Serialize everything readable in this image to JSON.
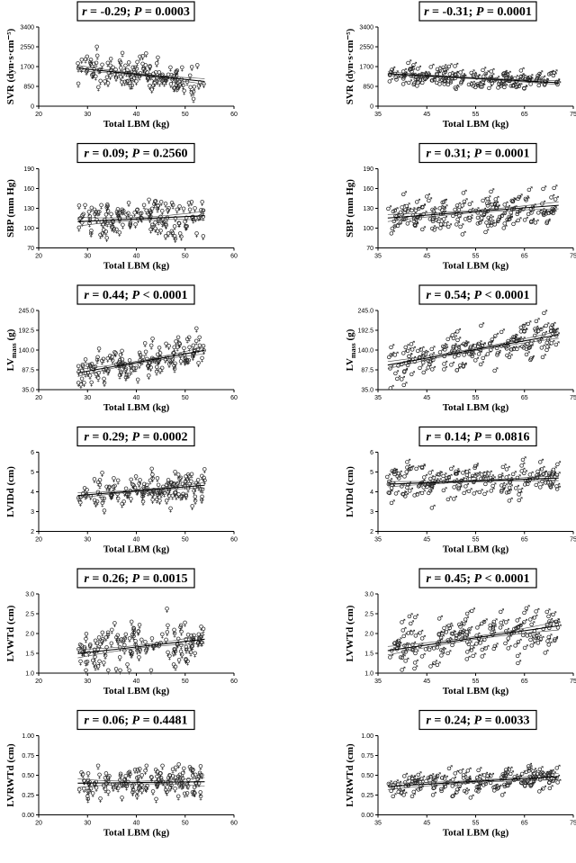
{
  "symbols": {
    "female": "♀",
    "male": "♂"
  },
  "chart_data": [
    {
      "id": "svr-f",
      "type": "scatter",
      "stat_r": "-0.29",
      "stat_p": "P = 0.0003",
      "ylabel": "SVR (dyn·s·cm⁻⁵)",
      "xlabel": "Total LBM (kg)",
      "xlim": [
        20,
        60
      ],
      "xticks": [
        20,
        30,
        40,
        50,
        60
      ],
      "ylim": [
        0,
        3400
      ],
      "yticks": [
        "0",
        "850",
        "1700",
        "2550",
        "3400"
      ],
      "sex": "female",
      "n": 150,
      "xrange": [
        28,
        54
      ],
      "fit": {
        "slope": -22,
        "intercept": 2250,
        "sd": 330
      },
      "ci_width": 90
    },
    {
      "id": "svr-m",
      "type": "scatter",
      "stat_r": "-0.31",
      "stat_p": "P = 0.0001",
      "ylabel": "SVR (dyn·s·cm⁻⁵)",
      "xlabel": "Total LBM (kg)",
      "xlim": [
        35,
        75
      ],
      "xticks": [
        35,
        45,
        55,
        65,
        75
      ],
      "ylim": [
        0,
        3400
      ],
      "yticks": [
        "0",
        "850",
        "1700",
        "2550",
        "3400"
      ],
      "sex": "male",
      "n": 170,
      "xrange": [
        37,
        72
      ],
      "fit": {
        "slope": -11,
        "intercept": 1800,
        "sd": 230
      },
      "ci_width": 60
    },
    {
      "id": "sbp-f",
      "type": "scatter",
      "stat_r": "0.09",
      "stat_p": "P = 0.2560",
      "ylabel": "SBP (mm Hg)",
      "xlabel": "Total LBM (kg)",
      "xlim": [
        20,
        60
      ],
      "xticks": [
        20,
        30,
        40,
        50,
        60
      ],
      "ylim": [
        70,
        190
      ],
      "yticks": [
        "70",
        "100",
        "130",
        "160",
        "190"
      ],
      "sex": "female",
      "n": 150,
      "xrange": [
        28,
        54
      ],
      "fit": {
        "slope": 0.35,
        "intercept": 100,
        "sd": 15
      },
      "ci_width": 5
    },
    {
      "id": "sbp-m",
      "type": "scatter",
      "stat_r": "0.31",
      "stat_p": "P = 0.0001",
      "ylabel": "SBP (mm Hg)",
      "xlabel": "Total LBM (kg)",
      "xlim": [
        35,
        75
      ],
      "xticks": [
        35,
        45,
        55,
        65,
        75
      ],
      "ylim": [
        70,
        190
      ],
      "yticks": [
        "70",
        "100",
        "130",
        "160",
        "190"
      ],
      "sex": "male",
      "n": 170,
      "xrange": [
        37,
        72
      ],
      "fit": {
        "slope": 0.55,
        "intercept": 95,
        "sd": 14
      },
      "ci_width": 4
    },
    {
      "id": "lvm-f",
      "type": "scatter",
      "stat_r": "0.44",
      "stat_p": "P < 0.0001",
      "ylabel": "LV mass (g)",
      "ylabel_main": "LV",
      "ylabel_sub": "mass",
      "ylabel_unit": " (g)",
      "xlabel": "Total LBM (kg)",
      "xlim": [
        20,
        60
      ],
      "xticks": [
        20,
        30,
        40,
        50,
        60
      ],
      "ylim": [
        35,
        245
      ],
      "yticks": [
        "35.0",
        "87.5",
        "140.0",
        "192.5",
        "245.0"
      ],
      "sex": "female",
      "n": 150,
      "xrange": [
        28,
        54
      ],
      "fit": {
        "slope": 2.3,
        "intercept": 15,
        "sd": 22
      },
      "ci_width": 7
    },
    {
      "id": "lvm-m",
      "type": "scatter",
      "stat_r": "0.54",
      "stat_p": "P < 0.0001",
      "ylabel": "LV mass (g)",
      "ylabel_main": "LV",
      "ylabel_sub": "mass",
      "ylabel_unit": " (g)",
      "xlabel": "Total LBM (kg)",
      "xlim": [
        35,
        75
      ],
      "xticks": [
        35,
        45,
        55,
        65,
        75
      ],
      "ylim": [
        35,
        245
      ],
      "yticks": [
        "35.0",
        "87.5",
        "140.0",
        "192.5",
        "245.0"
      ],
      "sex": "male",
      "n": 170,
      "xrange": [
        37,
        72
      ],
      "fit": {
        "slope": 2.3,
        "intercept": 15,
        "sd": 28
      },
      "ci_width": 7
    },
    {
      "id": "lvidd-f",
      "type": "scatter",
      "stat_r": "0.29",
      "stat_p": "P = 0.0002",
      "ylabel": "LVIDd (cm)",
      "xlabel": "Total LBM (kg)",
      "xlim": [
        20,
        60
      ],
      "xticks": [
        20,
        30,
        40,
        50,
        60
      ],
      "ylim": [
        2,
        6
      ],
      "yticks": [
        "2",
        "3",
        "4",
        "5",
        "6"
      ],
      "sex": "female",
      "n": 150,
      "xrange": [
        28,
        54
      ],
      "fit": {
        "slope": 0.02,
        "intercept": 3.25,
        "sd": 0.42
      },
      "ci_width": 0.1
    },
    {
      "id": "lvidd-m",
      "type": "scatter",
      "stat_r": "0.14",
      "stat_p": "P = 0.0816",
      "ylabel": "LVIDd (cm)",
      "xlabel": "Total LBM (kg)",
      "xlim": [
        35,
        75
      ],
      "xticks": [
        35,
        45,
        55,
        65,
        75
      ],
      "ylim": [
        2,
        6
      ],
      "yticks": [
        "2",
        "3",
        "4",
        "5",
        "6"
      ],
      "sex": "male",
      "n": 170,
      "xrange": [
        37,
        72
      ],
      "fit": {
        "slope": 0.009,
        "intercept": 4.05,
        "sd": 0.42
      },
      "ci_width": 0.1
    },
    {
      "id": "lvwtd-f",
      "type": "scatter",
      "stat_r": "0.26",
      "stat_p": "P = 0.0015",
      "ylabel": "LVWTd (cm)",
      "xlabel": "Total LBM (kg)",
      "xlim": [
        20,
        60
      ],
      "xticks": [
        20,
        30,
        40,
        50,
        60
      ],
      "ylim": [
        1.0,
        3.0
      ],
      "yticks": [
        "1.0",
        "1.5",
        "2.0",
        "2.5",
        "3.0"
      ],
      "sex": "female",
      "n": 150,
      "xrange": [
        28,
        54
      ],
      "fit": {
        "slope": 0.014,
        "intercept": 1.1,
        "sd": 0.3
      },
      "ci_width": 0.08
    },
    {
      "id": "lvwtd-m",
      "type": "scatter",
      "stat_r": "0.45",
      "stat_p": "P < 0.0001",
      "ylabel": "LVWTd (cm)",
      "xlabel": "Total LBM (kg)",
      "xlim": [
        35,
        75
      ],
      "xticks": [
        35,
        45,
        55,
        65,
        75
      ],
      "ylim": [
        1.0,
        3.0
      ],
      "yticks": [
        "1.0",
        "1.5",
        "2.0",
        "2.5",
        "3.0"
      ],
      "sex": "male",
      "n": 170,
      "xrange": [
        37,
        72
      ],
      "fit": {
        "slope": 0.018,
        "intercept": 0.9,
        "sd": 0.3
      },
      "ci_width": 0.08
    },
    {
      "id": "lvrwtd-f",
      "type": "scatter",
      "stat_r": "0.06",
      "stat_p": "P = 0.4481",
      "ylabel": "LVRWTd (cm)",
      "xlabel": "Total LBM (kg)",
      "xlim": [
        20,
        60
      ],
      "xticks": [
        20,
        30,
        40,
        50,
        60
      ],
      "ylim": [
        0.0,
        1.0
      ],
      "yticks": [
        "0.00",
        "0.25",
        "0.50",
        "0.75",
        "1.00"
      ],
      "sex": "female",
      "n": 150,
      "xrange": [
        28,
        54
      ],
      "fit": {
        "slope": 0.0007,
        "intercept": 0.38,
        "sd": 0.1
      },
      "ci_width": 0.04
    },
    {
      "id": "lvrwtd-m",
      "type": "scatter",
      "stat_r": "0.24",
      "stat_p": "P = 0.0033",
      "ylabel": "LVRWTd (cm)",
      "xlabel": "Total LBM (kg)",
      "xlim": [
        35,
        75
      ],
      "xticks": [
        35,
        45,
        55,
        65,
        75
      ],
      "ylim": [
        0.0,
        1.0
      ],
      "yticks": [
        "0.00",
        "0.25",
        "0.50",
        "0.75",
        "1.00"
      ],
      "sex": "male",
      "n": 170,
      "xrange": [
        37,
        72
      ],
      "fit": {
        "slope": 0.0035,
        "intercept": 0.23,
        "sd": 0.08
      },
      "ci_width": 0.03
    }
  ]
}
